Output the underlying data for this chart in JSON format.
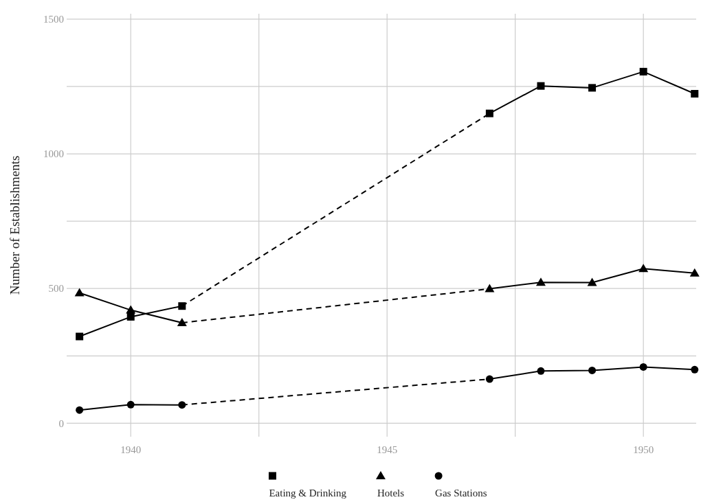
{
  "chart_data": {
    "type": "line",
    "ylabel": "Number of Establishments",
    "x": [
      1939,
      1940,
      1941,
      1947,
      1948,
      1949,
      1950,
      1951
    ],
    "series": [
      {
        "name": "Eating & Drinking",
        "color": "#000000",
        "marker": "square",
        "values": [
          322,
          395,
          435,
          1150,
          1252,
          1245,
          1305,
          1223
        ]
      },
      {
        "name": "Hotels",
        "color": "#000000",
        "marker": "triangle",
        "values": [
          484,
          420,
          373,
          499,
          523,
          522,
          574,
          557
        ]
      },
      {
        "name": "Gas Stations",
        "color": "#000000",
        "marker": "circle",
        "values": [
          49,
          69,
          68,
          164,
          194,
          196,
          209,
          199
        ]
      }
    ],
    "xlim": [
      1938.75,
      1951.03
    ],
    "xticks": [
      1940,
      {
        "value": 1942.5,
        "label": null
      },
      1945,
      {
        "value": 1947.5,
        "label": null
      },
      1950
    ],
    "ylim": [
      -50,
      1520
    ],
    "yticks": [
      0,
      {
        "value": 250,
        "label": null
      },
      500,
      {
        "value": 750,
        "label": null
      },
      1000,
      {
        "value": 1250,
        "label": null
      },
      1500
    ],
    "grid": true,
    "legend": "bottom"
  }
}
